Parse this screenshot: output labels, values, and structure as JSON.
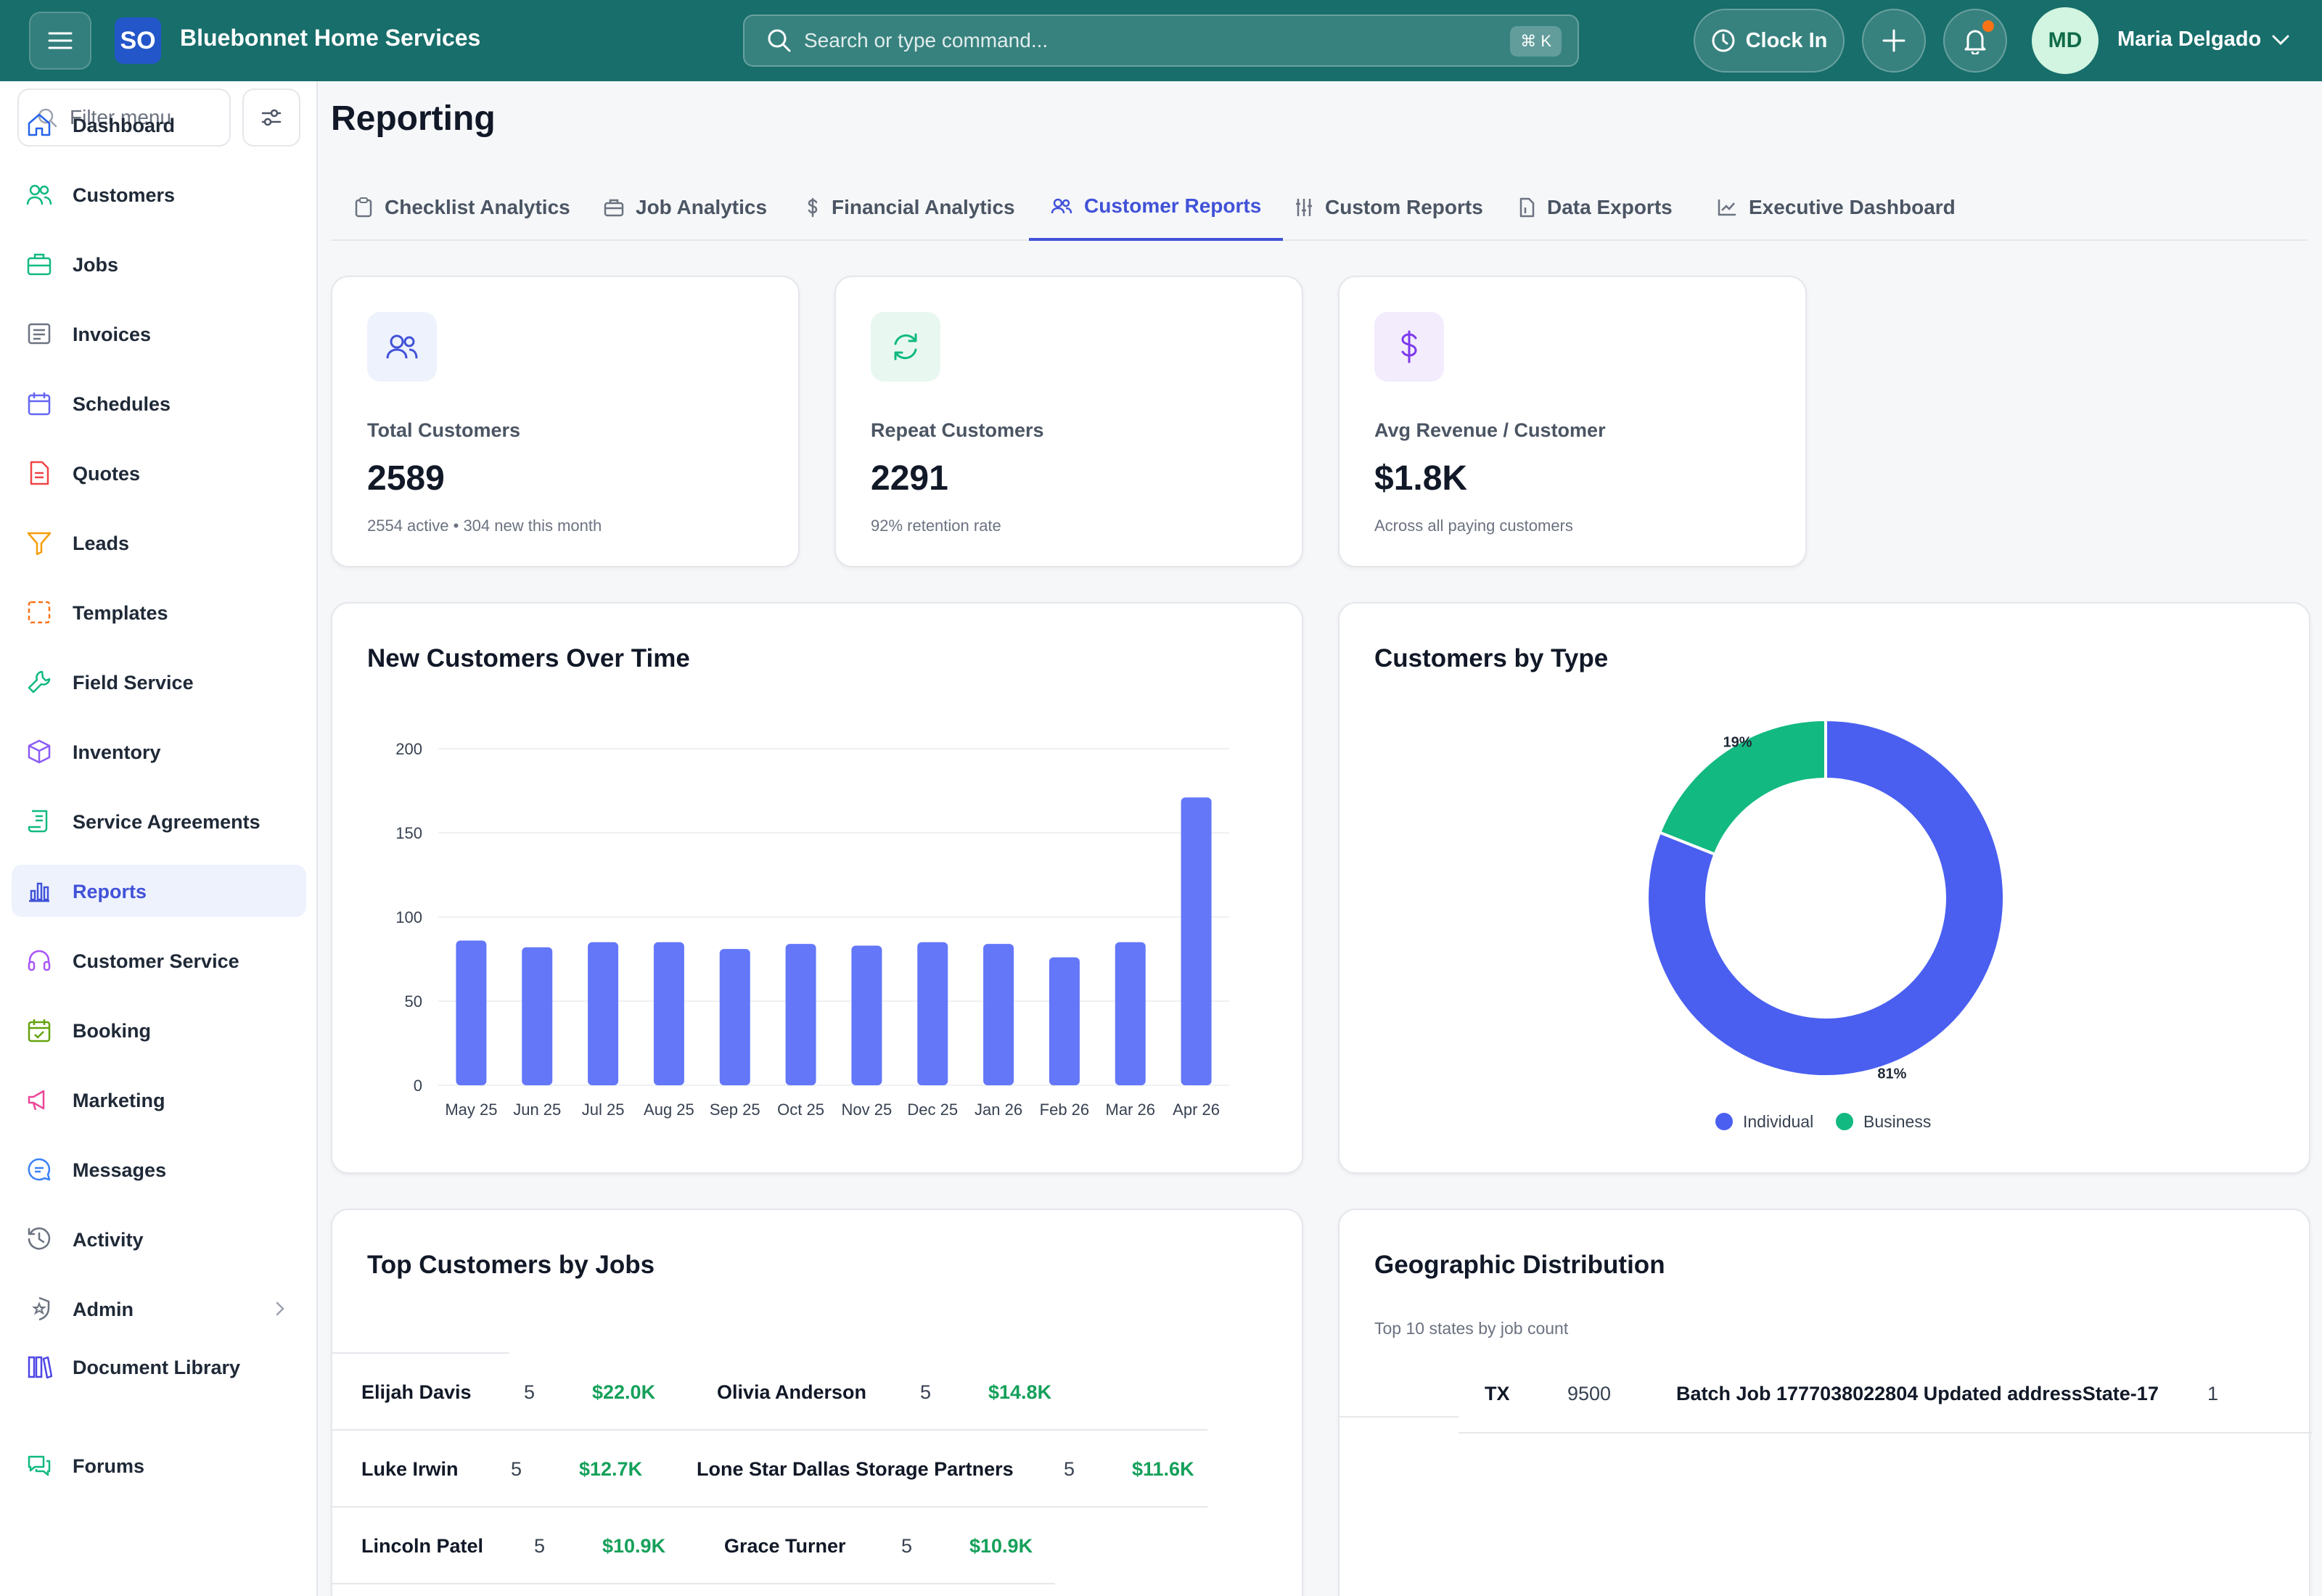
{
  "header": {
    "brand": "Bluebonnet Home Services",
    "logo_text": "SO",
    "search_placeholder": "Search or type command...",
    "search_shortcut": "⌘ K",
    "clock_in_label": "Clock In",
    "user_initials": "MD",
    "user_name": "Maria Delgado"
  },
  "sidebar": {
    "filter_placeholder": "Filter menu",
    "items": [
      {
        "label": "Dashboard",
        "icon": "home-icon",
        "color": "#2563eb"
      },
      {
        "label": "Customers",
        "icon": "users-icon",
        "color": "#10b981"
      },
      {
        "label": "Jobs",
        "icon": "briefcase-icon",
        "color": "#10b981"
      },
      {
        "label": "Invoices",
        "icon": "invoice-icon",
        "color": "#6b7280"
      },
      {
        "label": "Schedules",
        "icon": "calendar-icon",
        "color": "#6366f1"
      },
      {
        "label": "Quotes",
        "icon": "document-icon",
        "color": "#ef4444"
      },
      {
        "label": "Leads",
        "icon": "funnel-icon",
        "color": "#f59e0b"
      },
      {
        "label": "Templates",
        "icon": "template-icon",
        "color": "#f97316"
      },
      {
        "label": "Field Service",
        "icon": "wrench-icon",
        "color": "#10b981"
      },
      {
        "label": "Inventory",
        "icon": "box-icon",
        "color": "#8b5cf6"
      },
      {
        "label": "Service Agreements",
        "icon": "scroll-icon",
        "color": "#10b981"
      },
      {
        "label": "Reports",
        "icon": "bar-chart-icon",
        "color": "#4152d8"
      },
      {
        "label": "Customer Service",
        "icon": "headset-icon",
        "color": "#a855f7"
      },
      {
        "label": "Booking",
        "icon": "calendar-check-icon",
        "color": "#65a30d"
      },
      {
        "label": "Marketing",
        "icon": "megaphone-icon",
        "color": "#ec4899"
      },
      {
        "label": "Messages",
        "icon": "chat-icon",
        "color": "#3b82f6"
      },
      {
        "label": "Activity",
        "icon": "history-icon",
        "color": "#6b7280"
      },
      {
        "label": "Admin",
        "icon": "shield-icon",
        "color": "#6b7280"
      },
      {
        "label": "Document Library",
        "icon": "library-icon",
        "color": "#4f46e5"
      },
      {
        "label": "Forums",
        "icon": "forum-icon",
        "color": "#10b981"
      }
    ]
  },
  "page": {
    "title": "Reporting",
    "tabs": [
      {
        "label": "Checklist Analytics"
      },
      {
        "label": "Job Analytics"
      },
      {
        "label": "Financial Analytics"
      },
      {
        "label": "Customer Reports"
      },
      {
        "label": "Custom Reports"
      },
      {
        "label": "Data Exports"
      },
      {
        "label": "Executive Dashboard"
      }
    ]
  },
  "stats": [
    {
      "label": "Total Customers",
      "value": "2589",
      "sub": "2554 active • 304 new this month",
      "icon": "users-icon"
    },
    {
      "label": "Repeat Customers",
      "value": "2291",
      "sub": "92% retention rate",
      "icon": "refresh-icon"
    },
    {
      "label": "Avg Revenue / Customer",
      "value": "$1.8K",
      "sub": "Across all paying customers",
      "icon": "dollar-icon"
    }
  ],
  "new_customers": {
    "title": "New Customers Over Time"
  },
  "customers_by_type": {
    "title": "Customers by Type"
  },
  "chart_data": [
    {
      "type": "bar",
      "title": "New Customers Over Time",
      "categories": [
        "May 25",
        "Jun 25",
        "Jul 25",
        "Aug 25",
        "Sep 25",
        "Oct 25",
        "Nov 25",
        "Dec 25",
        "Jan 26",
        "Feb 26",
        "Mar 26",
        "Apr 26"
      ],
      "values": [
        86,
        82,
        85,
        85,
        81,
        84,
        83,
        85,
        84,
        76,
        85,
        171
      ],
      "ylim": [
        0,
        200
      ],
      "yticks": [
        0,
        50,
        100,
        150,
        200
      ],
      "grid": true,
      "color": "#6377f8"
    },
    {
      "type": "pie",
      "title": "Customers by Type",
      "donut": true,
      "labels": [
        "Individual",
        "Business"
      ],
      "values": [
        81,
        19
      ],
      "slice_labels": [
        "81%",
        "19%"
      ],
      "colors": [
        "#4a5ff0",
        "#12b981"
      ],
      "legend": "bottom"
    }
  ],
  "top_customers": {
    "title": "Top Customers by Jobs",
    "rows": [
      [
        {
          "name": "Elijah Davis",
          "jobs": "5",
          "revenue": "$22.0K"
        },
        {
          "name": "Olivia Anderson",
          "jobs": "5",
          "revenue": "$14.8K"
        }
      ],
      [
        {
          "name": "Luke Irwin",
          "jobs": "5",
          "revenue": "$12.7K"
        },
        {
          "name": "Lone Star Dallas Storage Partners",
          "jobs": "5",
          "revenue": "$11.6K"
        }
      ],
      [
        {
          "name": "Lincoln Patel",
          "jobs": "5",
          "revenue": "$10.9K"
        },
        {
          "name": "Grace Turner",
          "jobs": "5",
          "revenue": "$10.9K"
        }
      ]
    ]
  },
  "geo": {
    "title": "Geographic Distribution",
    "subtitle": "Top 10 states by job count",
    "rows": [
      {
        "state": "TX",
        "count": "9500",
        "other": "Batch Job 1777038022804 Updated addressState-17",
        "other_count": "1"
      }
    ]
  }
}
